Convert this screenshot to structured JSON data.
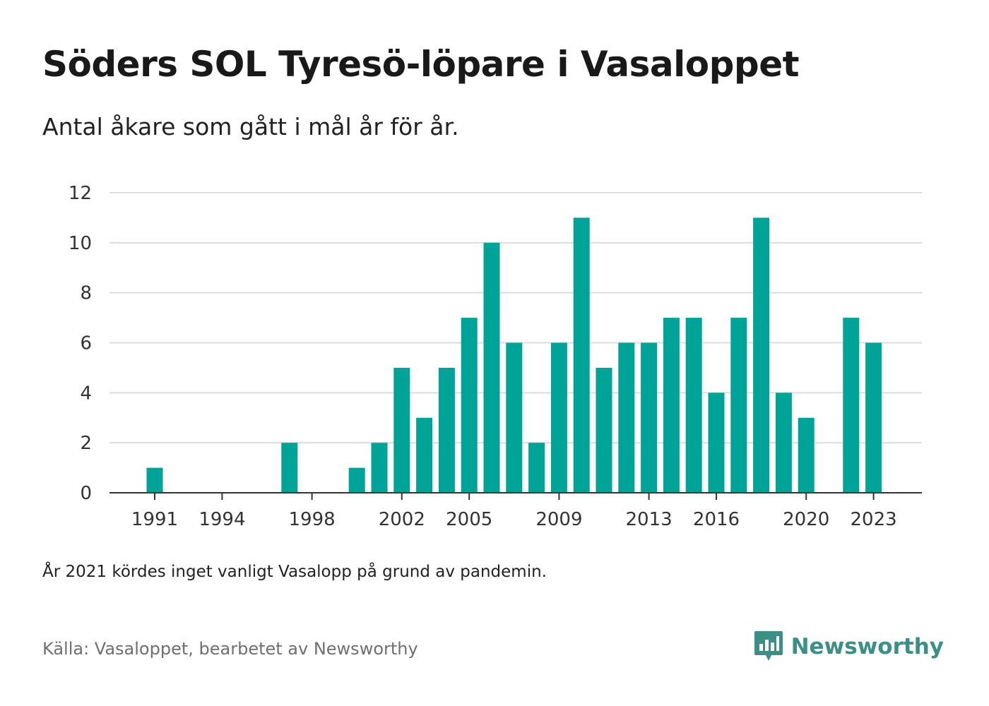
{
  "title": "Söders SOL Tyresö-löpare i Vasaloppet",
  "subtitle": "Antal åkare som gått i mål år för år.",
  "note": "År 2021 kördes inget vanligt Vasalopp på grund av pandemin.",
  "source": "Källa: Vasaloppet, bearbetet av Newsworthy",
  "brand": {
    "name": "Newsworthy",
    "color": "#3b8f87"
  },
  "chart_data": {
    "type": "bar",
    "x": [
      1991,
      1992,
      1993,
      1994,
      1995,
      1996,
      1997,
      1998,
      1999,
      2000,
      2001,
      2002,
      2003,
      2004,
      2005,
      2006,
      2007,
      2008,
      2009,
      2010,
      2011,
      2012,
      2013,
      2014,
      2015,
      2016,
      2017,
      2018,
      2019,
      2020,
      2021,
      2022,
      2023
    ],
    "values": [
      1,
      0,
      0,
      0,
      0,
      0,
      2,
      0,
      0,
      1,
      2,
      5,
      3,
      5,
      7,
      10,
      6,
      2,
      6,
      11,
      5,
      6,
      6,
      7,
      7,
      4,
      7,
      11,
      4,
      3,
      0,
      7,
      6
    ],
    "x_tick_labels": [
      "1991",
      "1994",
      "1998",
      "2002",
      "2005",
      "2009",
      "2013",
      "2016",
      "2020",
      "2023"
    ],
    "y_tick_labels": [
      "0",
      "2",
      "4",
      "6",
      "8",
      "10",
      "12"
    ],
    "ylim": [
      0,
      12
    ],
    "grid": true,
    "bar_color": "#00a398",
    "xlabel": "",
    "ylabel": ""
  }
}
